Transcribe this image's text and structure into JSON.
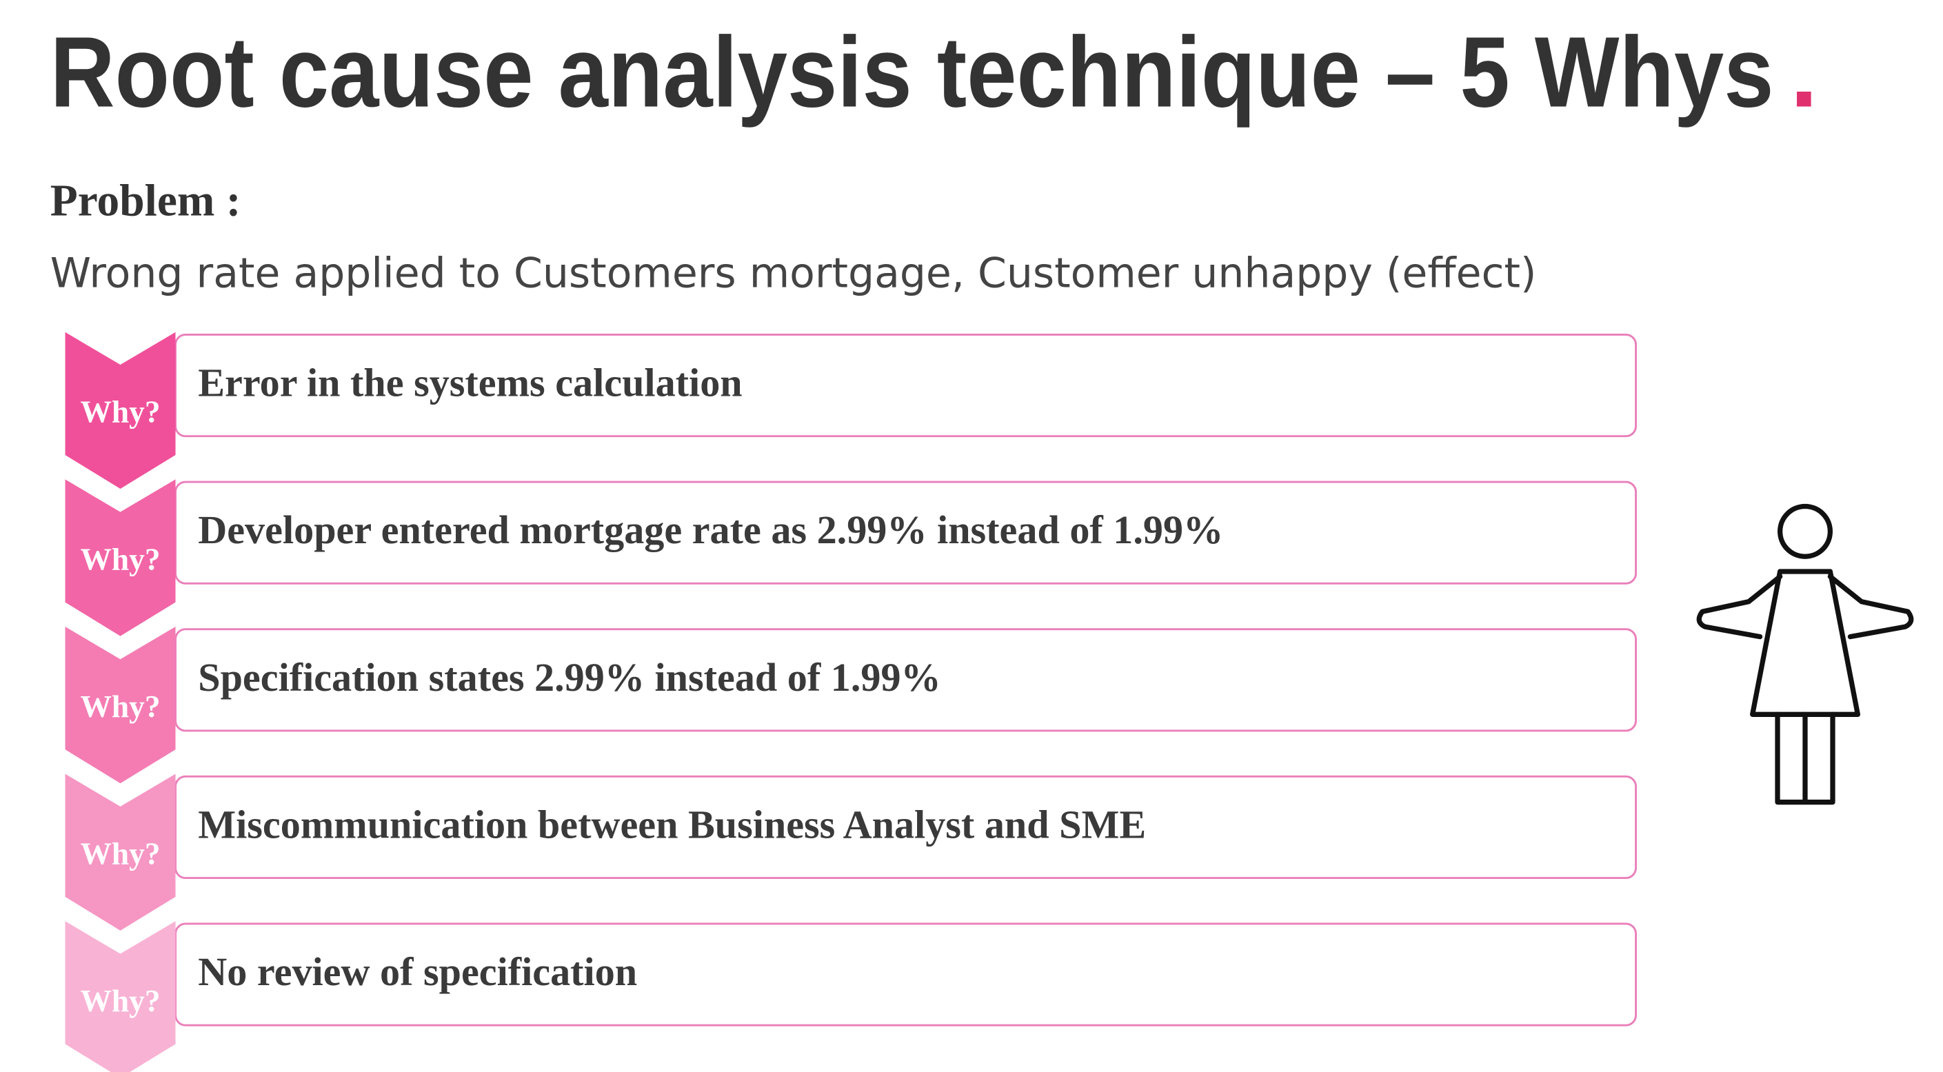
{
  "header": {
    "title": "Root cause analysis technique – 5 Whys",
    "title_mark": "."
  },
  "problem": {
    "label": "Problem :",
    "text": "Wrong rate applied to Customers mortgage, Customer unhappy (effect)"
  },
  "whys": [
    {
      "label": "Why?",
      "text": "Error in the systems calculation"
    },
    {
      "label": "Why?",
      "text": "Developer entered  mortgage rate as 2.99% instead of 1.99%"
    },
    {
      "label": "Why?",
      "text": "Specification states 2.99% instead of 1.99%"
    },
    {
      "label": "Why?",
      "text": "Miscommunication between Business Analyst and SME"
    },
    {
      "label": "Why?",
      "text": "No review of specification"
    }
  ]
}
